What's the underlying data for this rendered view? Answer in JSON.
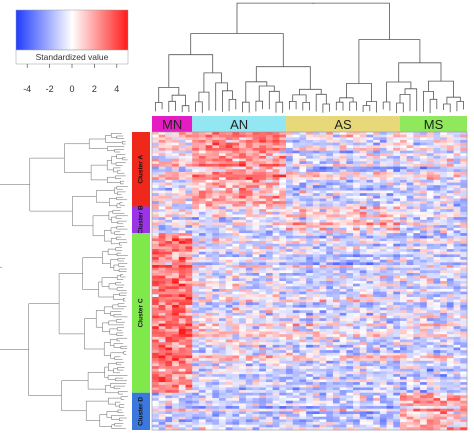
{
  "chart_data": {
    "type": "heatmap",
    "title": "",
    "colorbar": {
      "label": "Standardized value",
      "ticks": [
        -4,
        -2,
        0,
        2,
        4
      ],
      "range": [
        -5,
        5
      ],
      "colors": {
        "low": "#1f3cff",
        "mid": "#ffffff",
        "high": "#ff1a1a"
      }
    },
    "column_groups": [
      {
        "name": "MN",
        "count": 6,
        "color": "#e51cc4"
      },
      {
        "name": "AN",
        "count": 14,
        "color": "#92e7f2"
      },
      {
        "name": "AS",
        "count": 17,
        "color": "#e7d87a"
      },
      {
        "name": "MS",
        "count": 10,
        "color": "#90e85c"
      }
    ],
    "row_clusters": [
      {
        "name": "Cluster A",
        "rows": 28,
        "color": "#f0281c"
      },
      {
        "name": "Cluster B",
        "rows": 10,
        "color": "#9b33e6"
      },
      {
        "name": "Cluster C",
        "rows": 60,
        "color": "#7fe84a"
      },
      {
        "name": "Cluster D",
        "rows": 14,
        "color": "#3a78de"
      }
    ],
    "mean_levels": [
      [
        0.2,
        1.6,
        -0.4,
        -0.3
      ],
      [
        -0.2,
        -0.2,
        0.6,
        -0.2
      ],
      [
        2.4,
        -0.1,
        -0.4,
        -0.4
      ],
      [
        -0.2,
        -0.3,
        -0.4,
        1.4
      ]
    ],
    "legend_position": "top-left",
    "dendrograms": {
      "columns": "top",
      "rows": "left"
    }
  }
}
